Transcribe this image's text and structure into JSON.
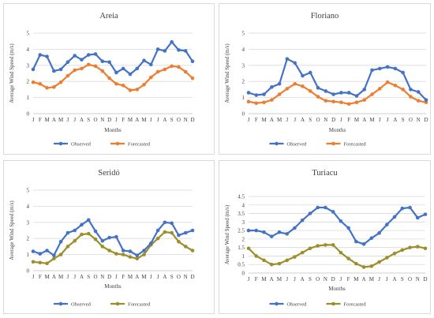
{
  "chart_data": [
    {
      "type": "line",
      "title": "Areia",
      "xlabel": "Months",
      "ylabel": "Average Wind Speed (m/s)",
      "categories": [
        "J",
        "F",
        "M",
        "A",
        "M",
        "J",
        "J",
        "A",
        "S",
        "O",
        "N",
        "D",
        "J",
        "F",
        "M",
        "A",
        "M",
        "J",
        "J",
        "A",
        "S",
        "O",
        "N",
        "D"
      ],
      "ylim": [
        0,
        5
      ],
      "yticks": [
        0,
        1,
        2,
        3,
        4,
        5
      ],
      "legend_position": "bottom",
      "series": [
        {
          "name": "Observed",
          "color": "#4472c4",
          "values": [
            2.75,
            3.65,
            3.55,
            2.65,
            2.75,
            3.2,
            3.6,
            3.35,
            3.65,
            3.7,
            3.25,
            3.2,
            2.55,
            2.8,
            2.45,
            2.8,
            3.3,
            3.05,
            4.0,
            3.9,
            4.45,
            3.95,
            3.9,
            3.25
          ]
        },
        {
          "name": "Forecasted",
          "color": "#ed7d31",
          "values": [
            1.95,
            1.85,
            1.6,
            1.65,
            1.95,
            2.35,
            2.7,
            2.8,
            3.05,
            2.95,
            2.65,
            2.2,
            1.85,
            1.75,
            1.45,
            1.5,
            1.8,
            2.25,
            2.6,
            2.75,
            2.95,
            2.9,
            2.6,
            2.2
          ]
        }
      ]
    },
    {
      "type": "line",
      "title": "Floriano",
      "xlabel": "Months",
      "ylabel": "Average Wind Speed (m/s)",
      "categories": [
        "J",
        "F",
        "M",
        "A",
        "M",
        "J",
        "J",
        "A",
        "S",
        "O",
        "N",
        "D",
        "J",
        "F",
        "M",
        "A",
        "M",
        "J",
        "J",
        "A",
        "S",
        "O",
        "N",
        "D"
      ],
      "ylim": [
        0,
        5
      ],
      "yticks": [
        0,
        1,
        2,
        3,
        4,
        5
      ],
      "legend_position": "bottom",
      "series": [
        {
          "name": "Observed",
          "color": "#4472c4",
          "values": [
            1.3,
            1.15,
            1.2,
            1.65,
            1.85,
            3.4,
            3.15,
            2.35,
            2.55,
            1.6,
            1.4,
            1.2,
            1.3,
            1.3,
            1.1,
            1.5,
            2.7,
            2.8,
            2.9,
            2.8,
            2.55,
            1.5,
            1.35,
            0.85
          ]
        },
        {
          "name": "Forecasted",
          "color": "#ed7d31",
          "values": [
            0.75,
            0.65,
            0.7,
            0.85,
            1.2,
            1.55,
            1.85,
            1.7,
            1.4,
            1.05,
            0.8,
            0.75,
            0.7,
            0.6,
            0.7,
            0.85,
            1.2,
            1.55,
            1.95,
            1.75,
            1.5,
            1.05,
            0.8,
            0.7
          ]
        }
      ]
    },
    {
      "type": "line",
      "title": "Seridó",
      "xlabel": "Months",
      "ylabel": "Average Wind Speed (m/s)",
      "categories": [
        "J",
        "F",
        "M",
        "A",
        "M",
        "J",
        "J",
        "A",
        "S",
        "O",
        "N",
        "D",
        "J",
        "F",
        "M",
        "A",
        "M",
        "J",
        "J",
        "A",
        "S",
        "O",
        "N",
        "D"
      ],
      "ylim": [
        0,
        5
      ],
      "yticks": [
        0,
        1,
        2,
        3,
        4,
        5
      ],
      "legend_position": "bottom",
      "series": [
        {
          "name": "Observed",
          "color": "#4472c4",
          "values": [
            1.2,
            1.05,
            1.25,
            0.95,
            1.8,
            2.35,
            2.5,
            2.85,
            3.15,
            2.45,
            1.85,
            2.05,
            2.1,
            1.25,
            1.2,
            0.95,
            1.25,
            1.7,
            2.5,
            3.0,
            2.95,
            2.2,
            2.35,
            2.5
          ]
        },
        {
          "name": "Forecasted",
          "color": "#9c8f2b",
          "values": [
            0.55,
            0.5,
            0.45,
            0.75,
            1.0,
            1.5,
            1.85,
            2.25,
            2.3,
            1.95,
            1.5,
            1.25,
            1.05,
            1.0,
            0.85,
            0.75,
            1.0,
            1.6,
            2.0,
            2.4,
            2.35,
            1.8,
            1.5,
            1.25
          ]
        }
      ]
    },
    {
      "type": "line",
      "title": "Turiacu",
      "xlabel": "Months",
      "ylabel": "Average Wind Speed (m/s)",
      "categories": [
        "J",
        "F",
        "M",
        "A",
        "M",
        "J",
        "J",
        "A",
        "S",
        "O",
        "N",
        "D",
        "J",
        "F",
        "M",
        "A",
        "M",
        "J",
        "J",
        "A",
        "S",
        "O",
        "N",
        "D"
      ],
      "ylim": [
        0,
        4.5
      ],
      "yticks": [
        0,
        0.5,
        1,
        1.5,
        2,
        2.5,
        3,
        3.5,
        4,
        4.5
      ],
      "legend_position": "bottom",
      "series": [
        {
          "name": "Observed",
          "color": "#4472c4",
          "values": [
            2.5,
            2.5,
            2.4,
            2.15,
            2.4,
            2.3,
            2.65,
            3.1,
            3.5,
            3.85,
            3.85,
            3.6,
            3.05,
            2.65,
            1.85,
            1.7,
            2.05,
            2.35,
            2.85,
            3.3,
            3.8,
            3.85,
            3.25,
            3.45
          ]
        },
        {
          "name": "Forecasted",
          "color": "#9c8f2b",
          "values": [
            1.45,
            1.0,
            0.75,
            0.5,
            0.55,
            0.75,
            0.95,
            1.2,
            1.45,
            1.6,
            1.65,
            1.65,
            1.2,
            0.85,
            0.55,
            0.35,
            0.4,
            0.65,
            0.9,
            1.15,
            1.35,
            1.5,
            1.55,
            1.45
          ]
        }
      ]
    }
  ]
}
